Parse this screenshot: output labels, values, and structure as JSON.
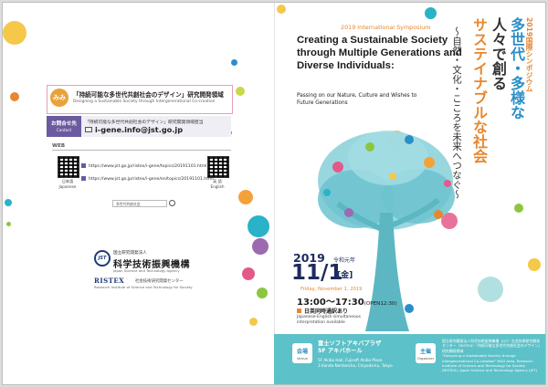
{
  "left_panel": {
    "org_logo_text": "みみ",
    "org_title": "「持続可能な多世代共創社会のデザイン」研究開発領域",
    "org_subtitle": "Designing a Sustainable Society through Intergenerational Co-creation",
    "contact": {
      "label_ja": "お問合せ先",
      "label_en": "Contact",
      "text": "「持続可能な多世代共創社会のデザイン」研究開発領域担当",
      "email": "i-gene.info@jst.go.jp"
    },
    "web": {
      "label": "WEB",
      "qr_left_caption": "日本語\nJapanese",
      "qr_right_caption": "英 語\nEnglish",
      "url_ja": "https://www.jst.go.jp/ristex/i-gene/topics/20191101.html",
      "url_en": "https://www.jst.go.jp/ristex/i-gene/en/topics/20191101.html",
      "search_text": "多世代共創社会"
    },
    "jst": {
      "logo_text": "JST",
      "small": "国立研究開発法人",
      "name": "科学技術振興機構",
      "name_en": "Japan Science and Technology Agency"
    },
    "ristex": {
      "name": "RISTEX",
      "sub": "社会技術研究開発センター",
      "name_en": "Research Institute of Science and Technology for Society"
    }
  },
  "right_panel": {
    "symposium_label": "2019 International Symposium",
    "title_en": "Creating a Sustainable Society through Multiple Generations and Diverse Individuals:",
    "subtitle_en": "Passing on our Nature, Culture and Wishes to Future Generations",
    "vertical_title": {
      "line1": "2019国際シンポジウム",
      "line2": "多世代・多様な",
      "line3": "人々で創る",
      "line4": "サステイナブルな社会",
      "line5": "〜自然・文化・こころを未来へつなぐ〜"
    },
    "date": {
      "year": "2019",
      "era": "令和元年",
      "day": "11/1",
      "weekday": "[金]",
      "en": "Friday, November 1, 2019",
      "time": "13:00〜17:30",
      "open": "(OPEN12:30)"
    },
    "interpretation": {
      "ja": "日英同時通訳あり",
      "en": "Japanese-English simultaneous interpretation available"
    },
    "footer": {
      "venue_label_ja": "会場",
      "venue_label_en": "Venue",
      "venue_name": "富士ソフトアキバプラザ\n5F アキバホール",
      "venue_addr": "5F Akiba Hall, Fujisoft Akiba Plaza\n3 Kanda-Neribeicho, Chiyoda-ku, Tokyo",
      "organizer_label_ja": "主催",
      "organizer_label_en": "Organizer",
      "organizer_text": "国立研究開発法人科学技術振興機構（JST）社会技術研究開発センター（RISTEX）「持続可能な多世代共創社会のデザイン」研究開発領域\n\"Designing a Sustainable Society through Intergenerational Co-creation\" R&D Area, Research Institute of Science and Technology for Society (RISTEX), Japan Science and Technology Agency (JST)"
    }
  },
  "colors": {
    "accent_orange": "#e7872f",
    "accent_blue": "#2a8fc7",
    "navy": "#1d2b5e",
    "teal": "#5cc1c8",
    "purple": "#6b5aa0"
  }
}
